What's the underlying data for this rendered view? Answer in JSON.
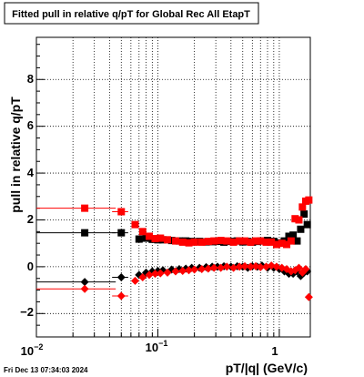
{
  "chart_data": {
    "type": "scatter",
    "title": "Fitted pull in relative q/pT for Global Rec All EtapT",
    "xlabel": "pT/|q| (GeV/c)",
    "ylabel": "pull in relative q/pT",
    "xscale": "log",
    "xlim": [
      0.01,
      1.8
    ],
    "ylim": [
      -3,
      9.8
    ],
    "grid": true,
    "x_tick_labels": [
      "10^-2",
      "10^-1",
      "1"
    ],
    "y_tick_labels": [
      "−2",
      "0",
      "2",
      "4",
      "6",
      "8"
    ],
    "y_ticks": [
      -2,
      0,
      2,
      4,
      6,
      8
    ],
    "timestamp": "Fri Dec 13 07:34:03 2024",
    "series": [
      {
        "color": "#000000",
        "marker": "square",
        "x": [
          0.025,
          0.05,
          0.07,
          0.08,
          0.09,
          0.1,
          0.11,
          0.13,
          0.15,
          0.17,
          0.19,
          0.22,
          0.25,
          0.28,
          0.31,
          0.35,
          0.4,
          0.45,
          0.5,
          0.55,
          0.6,
          0.66,
          0.72,
          0.8,
          0.9,
          1.0,
          1.1,
          1.2,
          1.3,
          1.4,
          1.5,
          1.6,
          1.7
        ],
        "y": [
          1.45,
          1.45,
          1.18,
          1.22,
          1.17,
          1.15,
          1.15,
          1.12,
          1.1,
          1.1,
          1.08,
          1.08,
          1.06,
          1.07,
          1.08,
          1.05,
          1.08,
          1.1,
          1.06,
          1.08,
          1.05,
          1.08,
          1.1,
          1.12,
          1.08,
          1.02,
          1.1,
          1.3,
          1.35,
          1.1,
          1.6,
          2.25,
          1.8
        ],
        "xerr_low": [
          0.018,
          0.008
        ],
        "xerr_high": [
          0.02,
          0.007
        ]
      },
      {
        "color": "#ff0000",
        "marker": "square",
        "x": [
          0.025,
          0.05,
          0.065,
          0.075,
          0.085,
          0.095,
          0.105,
          0.12,
          0.14,
          0.16,
          0.18,
          0.2,
          0.23,
          0.26,
          0.29,
          0.33,
          0.37,
          0.42,
          0.47,
          0.52,
          0.58,
          0.64,
          0.7,
          0.78,
          0.86,
          0.95,
          1.05,
          1.15,
          1.25,
          1.35,
          1.45,
          1.55,
          1.65,
          1.75
        ],
        "y": [
          2.5,
          2.35,
          1.8,
          1.5,
          1.3,
          1.2,
          1.22,
          1.15,
          1.1,
          1.05,
          1.02,
          1.05,
          1.05,
          1.08,
          1.1,
          1.12,
          1.1,
          1.05,
          1.1,
          1.1,
          1.05,
          1.1,
          1.1,
          1.05,
          1.05,
          0.95,
          1.0,
          0.95,
          1.1,
          2.05,
          2.0,
          2.55,
          2.8,
          2.85
        ],
        "xerr_low": [
          0.018,
          0.008
        ],
        "xerr_high": [
          0.02,
          0.007
        ]
      },
      {
        "color": "#000000",
        "marker": "diamond",
        "x": [
          0.025,
          0.05,
          0.07,
          0.08,
          0.09,
          0.1,
          0.11,
          0.13,
          0.15,
          0.17,
          0.19,
          0.22,
          0.25,
          0.28,
          0.31,
          0.35,
          0.4,
          0.45,
          0.5,
          0.55,
          0.6,
          0.66,
          0.72,
          0.8,
          0.9,
          1.0,
          1.1,
          1.2,
          1.3,
          1.4,
          1.5,
          1.6,
          1.7
        ],
        "y": [
          -0.65,
          -0.45,
          -0.35,
          -0.25,
          -0.2,
          -0.18,
          -0.15,
          -0.12,
          -0.1,
          -0.08,
          -0.05,
          -0.05,
          -0.02,
          0.0,
          0.0,
          0.02,
          0.0,
          0.02,
          0.0,
          -0.05,
          0.02,
          0.0,
          0.05,
          -0.05,
          -0.05,
          -0.1,
          -0.2,
          -0.3,
          -0.3,
          -0.2,
          -0.4,
          -0.25,
          -0.2
        ],
        "xerr_low": [
          0.018,
          0.008
        ],
        "xerr_high": [
          0.02,
          0.007
        ]
      },
      {
        "color": "#ff0000",
        "marker": "diamond",
        "x": [
          0.025,
          0.05,
          0.065,
          0.075,
          0.085,
          0.095,
          0.105,
          0.12,
          0.14,
          0.16,
          0.18,
          0.2,
          0.23,
          0.26,
          0.29,
          0.33,
          0.37,
          0.42,
          0.47,
          0.52,
          0.58,
          0.64,
          0.7,
          0.78,
          0.86,
          0.95,
          1.05,
          1.15,
          1.25,
          1.35,
          1.45,
          1.55,
          1.65,
          1.75
        ],
        "y": [
          -0.95,
          -1.25,
          -0.6,
          -0.45,
          -0.35,
          -0.3,
          -0.28,
          -0.25,
          -0.2,
          -0.18,
          -0.15,
          -0.12,
          -0.1,
          -0.08,
          -0.05,
          -0.05,
          0.0,
          -0.05,
          0.0,
          0.02,
          0.0,
          0.02,
          -0.02,
          0.0,
          0.05,
          0.0,
          -0.05,
          -0.1,
          -0.2,
          -0.15,
          -0.05,
          -0.25,
          -0.1,
          -1.3
        ],
        "xerr_low": [
          0.018,
          0.008
        ],
        "xerr_high": [
          0.02,
          0.007
        ]
      }
    ]
  }
}
